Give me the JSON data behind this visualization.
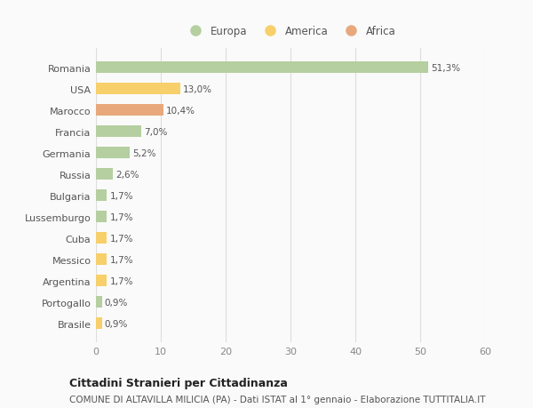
{
  "countries": [
    "Romania",
    "USA",
    "Marocco",
    "Francia",
    "Germania",
    "Russia",
    "Bulgaria",
    "Lussemburgo",
    "Cuba",
    "Messico",
    "Argentina",
    "Portogallo",
    "Brasile"
  ],
  "values": [
    51.3,
    13.0,
    10.4,
    7.0,
    5.2,
    2.6,
    1.7,
    1.7,
    1.7,
    1.7,
    1.7,
    0.9,
    0.9
  ],
  "labels": [
    "51,3%",
    "13,0%",
    "10,4%",
    "7,0%",
    "5,2%",
    "2,6%",
    "1,7%",
    "1,7%",
    "1,7%",
    "1,7%",
    "1,7%",
    "0,9%",
    "0,9%"
  ],
  "continents": [
    "Europa",
    "America",
    "Africa",
    "Europa",
    "Europa",
    "Europa",
    "Europa",
    "Europa",
    "America",
    "America",
    "America",
    "Europa",
    "America"
  ],
  "colors": {
    "Europa": "#b5cfa0",
    "America": "#f7cf6b",
    "Africa": "#e8a87c"
  },
  "legend_order": [
    "Europa",
    "America",
    "Africa"
  ],
  "xlim": [
    0,
    60
  ],
  "xticks": [
    0,
    10,
    20,
    30,
    40,
    50,
    60
  ],
  "title": "Cittadini Stranieri per Cittadinanza",
  "subtitle": "COMUNE DI ALTAVILLA MILICIA (PA) - Dati ISTAT al 1° gennaio - Elaborazione TUTTITALIA.IT",
  "bg_color": "#fafafa",
  "grid_color": "#dddddd",
  "bar_height": 0.55,
  "label_fontsize": 7.5,
  "ytick_fontsize": 8,
  "xtick_fontsize": 8,
  "legend_fontsize": 8.5,
  "title_fontsize": 9,
  "subtitle_fontsize": 7.5
}
